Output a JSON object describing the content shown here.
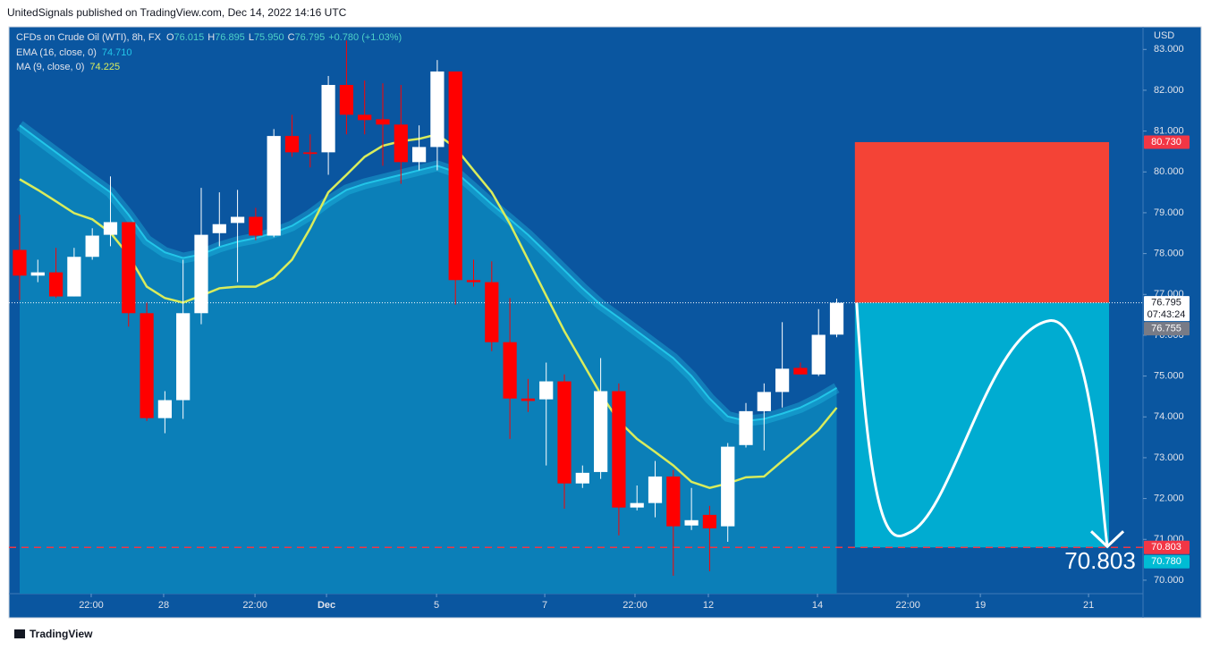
{
  "header": "UnitedSignals published on TradingView.com, Dec 14, 2022 14:16 UTC",
  "footer": "TradingView",
  "chart_data": {
    "type": "candlestick",
    "symbol": "CFDs on Crude Oil (WTI), 8h, FX",
    "ohlc_legend": [
      {
        "key": "O",
        "text": "76.015"
      },
      {
        "key": "H",
        "text": "76.895"
      },
      {
        "key": "L",
        "text": "75.950"
      },
      {
        "key": "C",
        "text": "76.795"
      }
    ],
    "change": "+0.780 (+1.03%)",
    "currency": "USD",
    "up_color": "#ffffff",
    "down_color": "#ff0000",
    "open": [
      78.09,
      77.46,
      77.54,
      76.95,
      77.92,
      78.46,
      78.77,
      76.54,
      73.97,
      74.41,
      76.54,
      78.5,
      78.75,
      78.9,
      78.44,
      80.88,
      80.48,
      80.48,
      82.13,
      81.4,
      81.29,
      81.16,
      80.24,
      80.61,
      82.46,
      77.35,
      77.3,
      75.83,
      74.45,
      74.43,
      74.87,
      72.37,
      72.65,
      74.63,
      71.78,
      71.89,
      72.54,
      71.34,
      71.6,
      71.32,
      73.31,
      74.14,
      74.61,
      75.2,
      75.04,
      76.015
    ],
    "high": [
      78.95,
      77.85,
      78.14,
      78.14,
      78.62,
      79.89,
      78.77,
      76.8,
      74.63,
      77.85,
      79.61,
      79.5,
      79.56,
      79.12,
      81.05,
      81.4,
      80.92,
      82.35,
      83.22,
      82.24,
      82.17,
      82.13,
      81.14,
      82.74,
      82.46,
      77.85,
      77.81,
      76.91,
      74.93,
      75.33,
      75.04,
      72.81,
      75.44,
      74.82,
      72.32,
      72.92,
      72.7,
      72.26,
      71.82,
      73.36,
      74.34,
      74.82,
      76.32,
      75.33,
      76.64,
      76.895
    ],
    "low": [
      76.86,
      77.3,
      76.91,
      76.95,
      77.85,
      78.18,
      76.21,
      73.9,
      73.6,
      73.95,
      76.27,
      78.18,
      77.3,
      78.33,
      78.4,
      80.37,
      80.11,
      79.93,
      80.92,
      80.92,
      80.15,
      79.71,
      80.04,
      80.04,
      76.75,
      77.19,
      75.61,
      73.46,
      74.12,
      72.81,
      71.75,
      72.26,
      72.48,
      71.1,
      71.71,
      71.54,
      70.11,
      71.23,
      70.22,
      70.94,
      73.25,
      73.18,
      74.23,
      75.04,
      75.0,
      75.95
    ],
    "close": [
      77.46,
      77.54,
      76.95,
      77.92,
      78.44,
      78.77,
      76.54,
      73.97,
      74.41,
      76.54,
      78.46,
      78.72,
      78.9,
      78.44,
      80.88,
      80.48,
      80.44,
      82.13,
      81.4,
      81.27,
      81.16,
      80.24,
      80.61,
      82.46,
      77.35,
      77.3,
      75.83,
      74.45,
      74.39,
      74.87,
      72.37,
      72.63,
      74.63,
      71.78,
      71.89,
      72.54,
      71.32,
      71.47,
      71.27,
      73.27,
      74.14,
      74.61,
      75.18,
      75.04,
      76.01,
      76.795
    ],
    "series": [
      {
        "name": "EMA (16, close, 0)",
        "last_label": "74.710",
        "color": "#22c5e8",
        "fill": "#0b7fb8",
        "values": [
          81.14,
          80.81,
          80.48,
          80.15,
          79.82,
          79.5,
          78.95,
          78.33,
          78.03,
          77.89,
          77.98,
          78.16,
          78.29,
          78.38,
          78.51,
          78.68,
          78.95,
          79.28,
          79.56,
          79.71,
          79.82,
          79.93,
          80.04,
          80.15,
          80.0,
          79.61,
          79.21,
          78.84,
          78.46,
          78.03,
          77.59,
          77.15,
          76.75,
          76.43,
          76.1,
          75.77,
          75.44,
          75.0,
          74.45,
          74.01,
          73.9,
          73.95,
          74.08,
          74.23,
          74.45,
          74.71
        ]
      },
      {
        "name": "MA (9, close, 0)",
        "last_label": "74.225",
        "color": "#d9ec5c",
        "values": [
          79.82,
          79.56,
          79.28,
          78.99,
          78.84,
          78.51,
          77.96,
          77.19,
          76.91,
          76.8,
          76.97,
          77.15,
          77.19,
          77.19,
          77.41,
          77.85,
          78.62,
          79.5,
          79.93,
          80.37,
          80.64,
          80.75,
          80.81,
          80.92,
          80.59,
          80.04,
          79.5,
          78.73,
          77.85,
          76.97,
          76.1,
          75.33,
          74.56,
          73.9,
          73.46,
          73.14,
          72.81,
          72.41,
          72.26,
          72.37,
          72.52,
          72.54,
          72.92,
          73.29,
          73.68,
          74.225
        ]
      }
    ],
    "position": {
      "stop": 80.73,
      "entry": 76.795,
      "target": 70.803,
      "start_index": 46,
      "end_index": 60,
      "stop_color": "#f44336",
      "target_color": "#00acd1"
    },
    "price_labels": [
      {
        "value": 80.73,
        "label": "80.730",
        "color": "#f23645"
      },
      {
        "value": 76.795,
        "label": "76.795",
        "color": "#ffffff"
      },
      {
        "value": 76.755,
        "label": "76.755",
        "color": "#787b86"
      },
      {
        "value": 70.803,
        "label": "70.803",
        "color": "#f23645"
      },
      {
        "value": 70.78,
        "label": "70.780",
        "color": "#00bcd4"
      }
    ],
    "countdown": "07:43:24",
    "xlim": [
      -0.59,
      61.87
    ],
    "xticks": [
      {
        "value": 3.94,
        "label": "22:00"
      },
      {
        "value": 7.93,
        "label": "28"
      },
      {
        "value": 12.96,
        "label": "22:00"
      },
      {
        "value": 16.9,
        "label": "Dec"
      },
      {
        "value": 22.96,
        "label": "5"
      },
      {
        "value": 28.92,
        "label": "7"
      },
      {
        "value": 33.89,
        "label": "22:00"
      },
      {
        "value": 37.93,
        "label": "12"
      },
      {
        "value": 43.94,
        "label": "14"
      },
      {
        "value": 48.92,
        "label": "22:00"
      },
      {
        "value": 52.91,
        "label": "19"
      },
      {
        "value": 58.87,
        "label": "21"
      }
    ],
    "ylim": [
      69.67,
      83.51
    ],
    "yticks": [
      {
        "value": 70,
        "label": "70.000"
      },
      {
        "value": 71,
        "label": "71.000"
      },
      {
        "value": 72,
        "label": "72.000"
      },
      {
        "value": 73,
        "label": "73.000"
      },
      {
        "value": 74,
        "label": "74.000"
      },
      {
        "value": 75,
        "label": "75.000"
      },
      {
        "value": 76,
        "label": "76.000"
      },
      {
        "value": 77,
        "label": "77.000"
      },
      {
        "value": 78,
        "label": "78.000"
      },
      {
        "value": 79,
        "label": "79.000"
      },
      {
        "value": 80,
        "label": "80.000"
      },
      {
        "value": 81,
        "label": "81.000"
      },
      {
        "value": 82,
        "label": "82.000"
      },
      {
        "value": 83,
        "label": "83.000"
      }
    ]
  }
}
